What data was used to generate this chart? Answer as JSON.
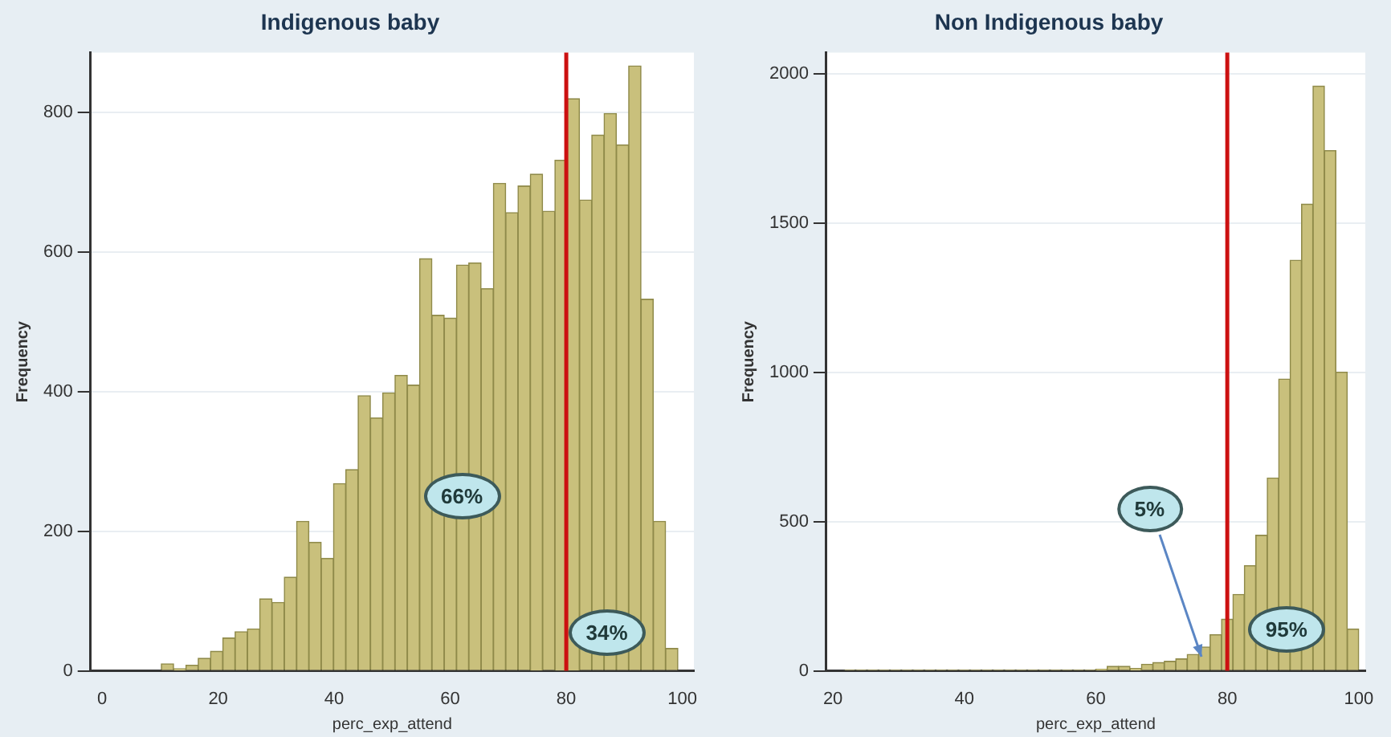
{
  "chart_data": [
    {
      "type": "histogram",
      "title": "Indigenous baby",
      "xlabel": "perc_exp_attend",
      "ylabel": "Frequency",
      "color": "#c9c07c",
      "bins": [
        10.2,
        12.32,
        14.44,
        16.56,
        18.68,
        20.8,
        22.92,
        25.04,
        27.16,
        29.28,
        31.4,
        33.52,
        35.64,
        37.76,
        39.88,
        42,
        44.12,
        46.24,
        48.36,
        50.48,
        52.6,
        54.72,
        56.84,
        58.96,
        61.08,
        63.2,
        65.32,
        67.44,
        69.56,
        71.68,
        73.8,
        75.92,
        78.04,
        80.16,
        82.28,
        84.4,
        86.52,
        88.64,
        90.76,
        92.88,
        95,
        97.12,
        99.24
      ],
      "values": [
        10,
        3,
        8,
        18,
        28,
        47,
        56,
        60,
        103,
        98,
        134,
        214,
        184,
        161,
        268,
        288,
        394,
        362,
        398,
        423,
        409,
        590,
        509,
        505,
        581,
        584,
        547,
        698,
        656,
        694,
        711,
        658,
        731,
        819,
        674,
        767,
        798,
        753,
        866,
        532,
        214,
        32
      ],
      "xlim": [
        -2,
        102
      ],
      "ylim": [
        0,
        885
      ],
      "xticks": [
        0,
        20,
        40,
        60,
        80,
        100
      ],
      "yticks": [
        0,
        200,
        400,
        600,
        800
      ],
      "grid": "y",
      "ref_lines": [
        {
          "axis": "x",
          "value": 80,
          "color": "#cc1111"
        }
      ],
      "annotations": [
        {
          "text": "66%",
          "x": 62,
          "y": 250
        },
        {
          "text": "34%",
          "x": 87,
          "y": 55
        }
      ]
    },
    {
      "type": "histogram",
      "title": "Non Indigenous baby",
      "xlabel": "perc_exp_attend",
      "ylabel": "Frequency",
      "color": "#c9c07c",
      "bins": [
        21.7,
        23.44,
        25.18,
        26.92,
        28.66,
        30.4,
        32.14,
        33.88,
        35.62,
        37.36,
        39.1,
        40.84,
        42.58,
        44.32,
        46.06,
        47.8,
        49.54,
        51.28,
        53.02,
        54.76,
        56.5,
        58.24,
        59.98,
        61.72,
        63.46,
        65.2,
        66.94,
        68.68,
        70.42,
        72.16,
        73.9,
        75.64,
        77.38,
        79.12,
        80.86,
        82.6,
        84.34,
        86.08,
        87.82,
        89.56,
        91.3,
        93.04,
        94.78,
        96.52,
        98.26,
        100
      ],
      "values": [
        3,
        3,
        3,
        3,
        3,
        3,
        3,
        3,
        3,
        3,
        3,
        3,
        3,
        3,
        3,
        3,
        3,
        3,
        3,
        3,
        3,
        3,
        5,
        15,
        15,
        8,
        22,
        28,
        32,
        40,
        55,
        80,
        121,
        173,
        256,
        352,
        454,
        646,
        977,
        1375,
        1563,
        1958,
        1742,
        1000,
        140
      ],
      "xlim": [
        19,
        101
      ],
      "ylim": [
        0,
        2070
      ],
      "xticks": [
        20,
        40,
        60,
        80,
        100
      ],
      "yticks": [
        0,
        500,
        1000,
        1500,
        2000
      ],
      "grid": "y",
      "ref_lines": [
        {
          "axis": "x",
          "value": 80,
          "color": "#cc1111"
        }
      ],
      "annotations": [
        {
          "text": "5%",
          "x": 76,
          "y": 50
        },
        {
          "text": "95%",
          "x": 89,
          "y": 138
        }
      ]
    }
  ]
}
